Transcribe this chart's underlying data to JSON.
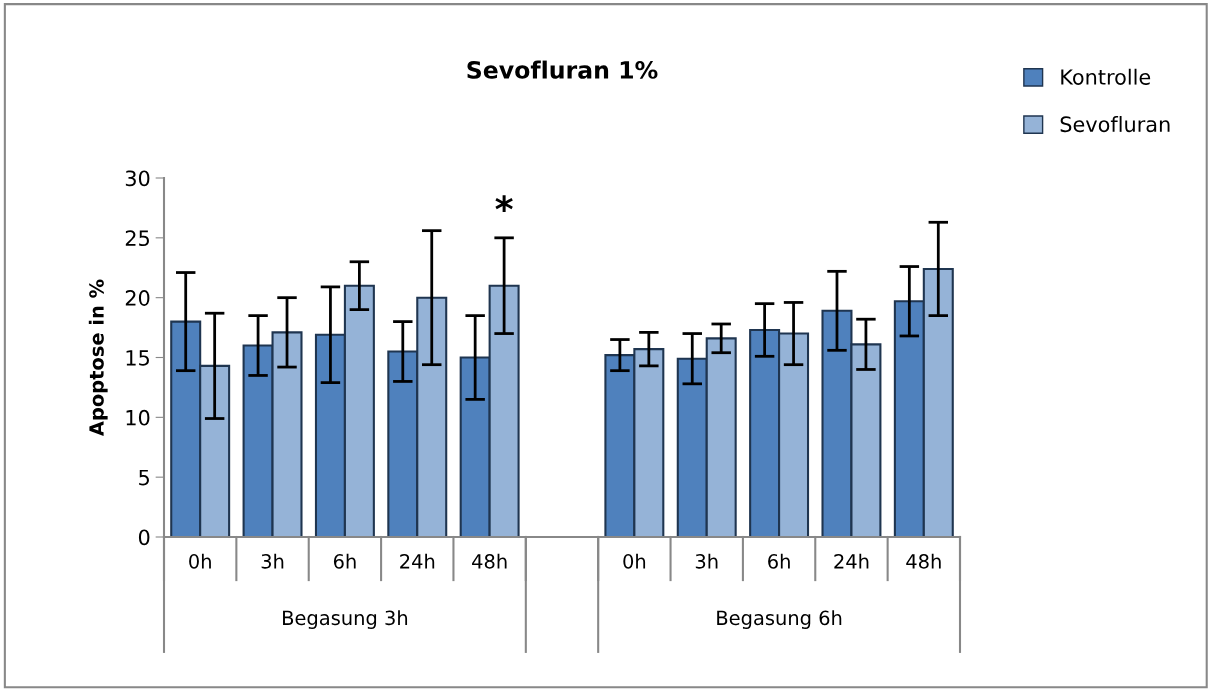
{
  "chart_data": {
    "type": "bar",
    "title": "Sevofluran 1%",
    "ylabel": "Apoptose in %",
    "categories": [
      "0h",
      "3h",
      "6h",
      "24h",
      "48h",
      null,
      "0h",
      "3h",
      "6h",
      "24h",
      "48h"
    ],
    "series": [
      {
        "name": "Kontrolle",
        "color": "#4f81bd",
        "values": [
          18.0,
          16.0,
          16.9,
          15.5,
          15.0,
          null,
          15.2,
          14.9,
          17.3,
          18.9,
          19.7
        ],
        "errors": [
          4.1,
          2.5,
          4.0,
          2.5,
          3.5,
          null,
          1.3,
          2.1,
          2.2,
          3.3,
          2.9
        ]
      },
      {
        "name": "Sevofluran",
        "color": "#95b3d7",
        "values": [
          14.3,
          17.1,
          21.0,
          20.0,
          21.0,
          null,
          15.7,
          16.6,
          17.0,
          16.1,
          22.4
        ],
        "errors": [
          4.4,
          2.9,
          2.0,
          5.6,
          4.0,
          null,
          1.4,
          1.2,
          2.6,
          2.1,
          3.9
        ]
      }
    ],
    "ylim": [
      0,
      30
    ],
    "yticks": [
      0,
      5,
      10,
      15,
      20,
      25,
      30
    ],
    "grid": false,
    "legend": "top right",
    "annotations": [
      "Begasung 3h",
      "Begasung 6h",
      "*"
    ]
  }
}
